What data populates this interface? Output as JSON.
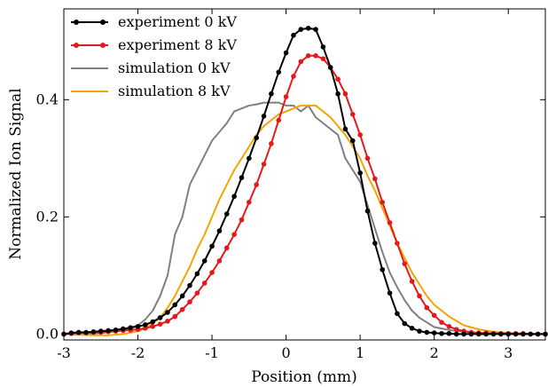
{
  "chart_data": {
    "type": "line",
    "xlabel": "Position (mm)",
    "ylabel": "Normalized Ion Signal",
    "xlim": [
      -3,
      3.5
    ],
    "ylim": [
      -0.01,
      0.555
    ],
    "xticks": [
      -3,
      -2,
      -1,
      0,
      1,
      2,
      3
    ],
    "yticks": [
      0.0,
      0.2,
      0.4
    ],
    "xtick_labels": [
      "-3",
      "-2",
      "-1",
      "0",
      "1",
      "2",
      "3"
    ],
    "ytick_labels": [
      "0.0",
      "0.2",
      "0.4"
    ],
    "grid": false,
    "legend_position": "top-left",
    "series": [
      {
        "name": "experiment 0 kV",
        "color": "#000000",
        "markers": true,
        "x": [
          -3.0,
          -2.9,
          -2.8,
          -2.7,
          -2.6,
          -2.5,
          -2.4,
          -2.3,
          -2.2,
          -2.1,
          -2.0,
          -1.9,
          -1.8,
          -1.7,
          -1.6,
          -1.5,
          -1.4,
          -1.3,
          -1.2,
          -1.1,
          -1.0,
          -0.9,
          -0.8,
          -0.7,
          -0.6,
          -0.5,
          -0.4,
          -0.3,
          -0.2,
          -0.1,
          0.0,
          0.1,
          0.2,
          0.3,
          0.4,
          0.5,
          0.6,
          0.7,
          0.8,
          0.9,
          1.0,
          1.1,
          1.2,
          1.3,
          1.4,
          1.5,
          1.6,
          1.7,
          1.8,
          1.9,
          2.0,
          2.1,
          2.2,
          2.3,
          2.4,
          2.5,
          2.6,
          2.7,
          2.8,
          2.9,
          3.0,
          3.1,
          3.2,
          3.3,
          3.4,
          3.5
        ],
        "y": [
          0.0,
          0.002,
          0.003,
          0.003,
          0.004,
          0.005,
          0.006,
          0.007,
          0.009,
          0.011,
          0.013,
          0.016,
          0.021,
          0.028,
          0.037,
          0.05,
          0.065,
          0.083,
          0.103,
          0.125,
          0.15,
          0.176,
          0.205,
          0.235,
          0.267,
          0.3,
          0.335,
          0.372,
          0.41,
          0.447,
          0.48,
          0.51,
          0.52,
          0.522,
          0.52,
          0.49,
          0.455,
          0.41,
          0.35,
          0.33,
          0.275,
          0.21,
          0.155,
          0.11,
          0.07,
          0.035,
          0.018,
          0.01,
          0.005,
          0.003,
          0.002,
          0.001,
          0.001,
          0.0,
          0.0,
          0.0,
          0.0,
          0.0,
          0.0,
          0.0,
          0.0,
          0.0,
          0.0,
          0.0,
          0.0,
          0.0
        ]
      },
      {
        "name": "experiment 8 kV",
        "color": "#e31a1c",
        "markers": true,
        "x": [
          -3.0,
          -2.9,
          -2.8,
          -2.7,
          -2.6,
          -2.5,
          -2.4,
          -2.3,
          -2.2,
          -2.1,
          -2.0,
          -1.9,
          -1.8,
          -1.7,
          -1.6,
          -1.5,
          -1.4,
          -1.3,
          -1.2,
          -1.1,
          -1.0,
          -0.9,
          -0.8,
          -0.7,
          -0.6,
          -0.5,
          -0.4,
          -0.3,
          -0.2,
          -0.1,
          0.0,
          0.1,
          0.2,
          0.3,
          0.4,
          0.5,
          0.6,
          0.7,
          0.8,
          0.9,
          1.0,
          1.1,
          1.2,
          1.3,
          1.4,
          1.5,
          1.6,
          1.7,
          1.8,
          1.9,
          2.0,
          2.1,
          2.2,
          2.3,
          2.4,
          2.5,
          2.6,
          2.7,
          2.8,
          2.9,
          3.0,
          3.1,
          3.2,
          3.3,
          3.4,
          3.5
        ],
        "y": [
          0.0,
          0.001,
          0.002,
          0.002,
          0.003,
          0.003,
          0.004,
          0.005,
          0.006,
          0.007,
          0.008,
          0.01,
          0.013,
          0.017,
          0.022,
          0.03,
          0.042,
          0.055,
          0.07,
          0.087,
          0.105,
          0.125,
          0.147,
          0.17,
          0.195,
          0.225,
          0.255,
          0.29,
          0.325,
          0.365,
          0.405,
          0.44,
          0.465,
          0.475,
          0.475,
          0.47,
          0.455,
          0.435,
          0.41,
          0.375,
          0.34,
          0.3,
          0.265,
          0.225,
          0.19,
          0.155,
          0.12,
          0.09,
          0.065,
          0.045,
          0.032,
          0.02,
          0.013,
          0.008,
          0.005,
          0.003,
          0.002,
          0.002,
          0.001,
          0.001,
          0.001,
          0.001,
          0.001,
          0.0,
          0.0,
          0.0
        ]
      },
      {
        "name": "simulation 0 kV",
        "color": "#808080",
        "markers": false,
        "x": [
          -3.0,
          -2.8,
          -2.6,
          -2.4,
          -2.2,
          -2.0,
          -1.9,
          -1.8,
          -1.7,
          -1.6,
          -1.5,
          -1.4,
          -1.3,
          -1.2,
          -1.1,
          -1.0,
          -0.9,
          -0.8,
          -0.7,
          -0.6,
          -0.5,
          -0.4,
          -0.3,
          -0.2,
          -0.1,
          0.0,
          0.1,
          0.2,
          0.3,
          0.4,
          0.5,
          0.6,
          0.7,
          0.8,
          0.9,
          1.0,
          1.1,
          1.2,
          1.3,
          1.4,
          1.5,
          1.6,
          1.7,
          1.8,
          1.9,
          2.0,
          2.2,
          2.4,
          2.6,
          2.8,
          3.0,
          3.2,
          3.5
        ],
        "y": [
          0.0,
          0.0,
          0.001,
          0.003,
          0.007,
          0.015,
          0.025,
          0.04,
          0.065,
          0.1,
          0.17,
          0.2,
          0.255,
          0.28,
          0.305,
          0.33,
          0.345,
          0.36,
          0.38,
          0.385,
          0.39,
          0.392,
          0.395,
          0.395,
          0.395,
          0.39,
          0.39,
          0.38,
          0.39,
          0.37,
          0.36,
          0.35,
          0.34,
          0.3,
          0.28,
          0.26,
          0.22,
          0.18,
          0.14,
          0.105,
          0.08,
          0.058,
          0.04,
          0.028,
          0.02,
          0.012,
          0.007,
          0.004,
          0.002,
          0.001,
          0.0,
          0.0,
          0.0
        ]
      },
      {
        "name": "simulation 8 kV",
        "color": "#f5a500",
        "markers": false,
        "x": [
          -3.0,
          -2.8,
          -2.6,
          -2.4,
          -2.2,
          -2.0,
          -1.9,
          -1.8,
          -1.7,
          -1.6,
          -1.5,
          -1.4,
          -1.3,
          -1.2,
          -1.1,
          -1.0,
          -0.9,
          -0.8,
          -0.7,
          -0.6,
          -0.5,
          -0.4,
          -0.3,
          -0.2,
          -0.1,
          0.0,
          0.1,
          0.2,
          0.3,
          0.4,
          0.5,
          0.6,
          0.7,
          0.8,
          0.9,
          1.0,
          1.1,
          1.2,
          1.3,
          1.4,
          1.5,
          1.6,
          1.7,
          1.8,
          1.9,
          2.0,
          2.2,
          2.4,
          2.6,
          2.8,
          3.0,
          3.2,
          3.5
        ],
        "y": [
          0.0,
          -0.001,
          -0.002,
          -0.002,
          0.0,
          0.005,
          0.01,
          0.018,
          0.028,
          0.045,
          0.065,
          0.09,
          0.115,
          0.145,
          0.17,
          0.2,
          0.23,
          0.255,
          0.28,
          0.3,
          0.32,
          0.34,
          0.355,
          0.365,
          0.375,
          0.38,
          0.385,
          0.39,
          0.39,
          0.39,
          0.38,
          0.37,
          0.355,
          0.34,
          0.32,
          0.3,
          0.27,
          0.245,
          0.215,
          0.185,
          0.155,
          0.13,
          0.105,
          0.085,
          0.065,
          0.05,
          0.03,
          0.015,
          0.008,
          0.004,
          0.002,
          0.001,
          0.0
        ]
      }
    ]
  }
}
